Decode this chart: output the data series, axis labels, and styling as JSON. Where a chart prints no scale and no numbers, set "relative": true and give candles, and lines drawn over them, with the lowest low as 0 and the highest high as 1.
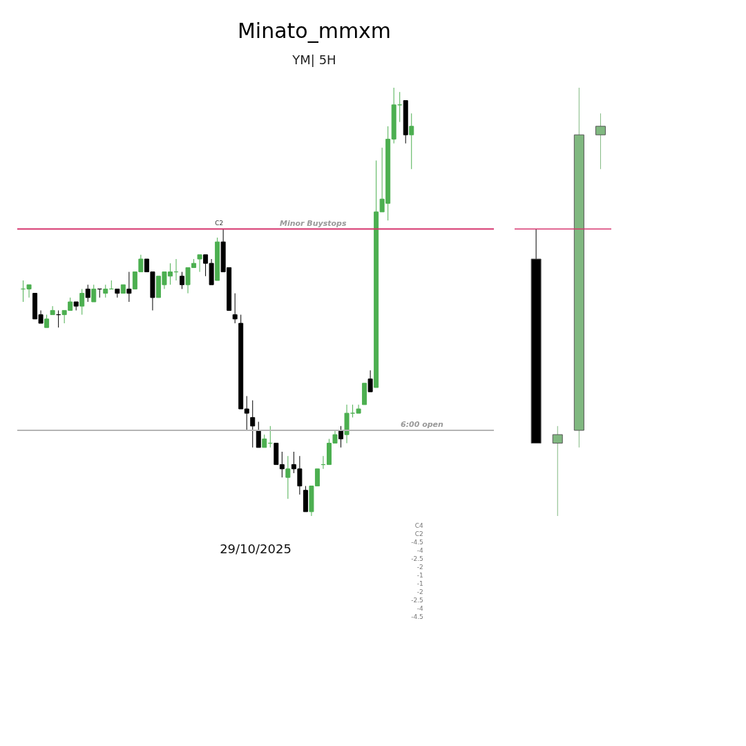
{
  "chart_data": [
    {
      "type": "candlestick",
      "title": "Minato_mmxm",
      "subtitle": "YM| 5H",
      "xlabel": "29/10/2025",
      "relative": true,
      "categories": [
        null,
        null,
        null,
        null,
        null,
        null,
        null,
        null,
        null,
        null,
        null,
        null,
        null,
        null,
        null,
        null,
        null,
        null,
        null,
        null,
        null,
        null,
        null,
        null,
        null,
        null,
        null,
        null,
        null,
        null,
        null,
        null,
        null,
        null,
        null,
        null,
        null,
        null,
        null,
        null,
        null,
        null,
        null,
        null,
        null,
        null,
        null,
        null,
        null,
        null,
        null,
        null,
        null,
        null,
        null,
        null,
        null,
        null,
        null,
        null,
        null,
        null,
        null,
        null,
        null,
        null,
        null
      ],
      "ohlc": [
        [
          0.53,
          0.55,
          0.5,
          0.53
        ],
        [
          0.53,
          0.54,
          0.51,
          0.54
        ],
        [
          0.52,
          0.52,
          0.46,
          0.46
        ],
        [
          0.47,
          0.48,
          0.45,
          0.45
        ],
        [
          0.44,
          0.47,
          0.44,
          0.46
        ],
        [
          0.47,
          0.49,
          0.47,
          0.48
        ],
        [
          0.47,
          0.48,
          0.44,
          0.47
        ],
        [
          0.47,
          0.48,
          0.45,
          0.48
        ],
        [
          0.48,
          0.51,
          0.48,
          0.5
        ],
        [
          0.5,
          0.5,
          0.48,
          0.49
        ],
        [
          0.49,
          0.53,
          0.47,
          0.52
        ],
        [
          0.53,
          0.54,
          0.5,
          0.51
        ],
        [
          0.5,
          0.54,
          0.5,
          0.53
        ],
        [
          0.53,
          0.53,
          0.51,
          0.53
        ],
        [
          0.52,
          0.54,
          0.51,
          0.53
        ],
        [
          0.53,
          0.55,
          0.53,
          0.53
        ],
        [
          0.53,
          0.53,
          0.51,
          0.52
        ],
        [
          0.52,
          0.54,
          0.52,
          0.54
        ],
        [
          0.53,
          0.57,
          0.5,
          0.52
        ],
        [
          0.53,
          0.57,
          0.53,
          0.57
        ],
        [
          0.57,
          0.61,
          0.57,
          0.6
        ],
        [
          0.6,
          0.6,
          0.57,
          0.57
        ],
        [
          0.57,
          0.57,
          0.48,
          0.51
        ],
        [
          0.51,
          0.56,
          0.51,
          0.56
        ],
        [
          0.54,
          0.57,
          0.53,
          0.57
        ],
        [
          0.56,
          0.59,
          0.54,
          0.57
        ],
        [
          0.57,
          0.6,
          0.55,
          0.57
        ],
        [
          0.56,
          0.57,
          0.53,
          0.54
        ],
        [
          0.54,
          0.58,
          0.52,
          0.58
        ],
        [
          0.58,
          0.6,
          0.58,
          0.59
        ],
        [
          0.6,
          0.61,
          0.57,
          0.61
        ],
        [
          0.61,
          0.61,
          0.56,
          0.59
        ],
        [
          0.59,
          0.6,
          0.54,
          0.54
        ],
        [
          0.55,
          0.65,
          0.55,
          0.64
        ],
        [
          0.64,
          0.67,
          0.57,
          0.57
        ],
        [
          0.58,
          0.58,
          0.48,
          0.48
        ],
        [
          0.47,
          0.52,
          0.45,
          0.46
        ],
        [
          0.45,
          0.47,
          0.25,
          0.25
        ],
        [
          0.25,
          0.28,
          0.2,
          0.24
        ],
        [
          0.23,
          0.27,
          0.16,
          0.21
        ],
        [
          0.2,
          0.22,
          0.16,
          0.16
        ],
        [
          0.16,
          0.19,
          0.16,
          0.18
        ],
        [
          0.17,
          0.21,
          0.16,
          0.17
        ],
        [
          0.17,
          0.17,
          0.12,
          0.12
        ],
        [
          0.12,
          0.15,
          0.09,
          0.11
        ],
        [
          0.09,
          0.14,
          0.04,
          0.11
        ],
        [
          0.12,
          0.15,
          0.1,
          0.11
        ],
        [
          0.11,
          0.14,
          0.05,
          0.07
        ],
        [
          0.06,
          0.07,
          0.01,
          0.01
        ],
        [
          0.01,
          0.07,
          0,
          0.07
        ],
        [
          0.07,
          0.11,
          0.07,
          0.11
        ],
        [
          0.12,
          0.14,
          0.11,
          0.12
        ],
        [
          0.12,
          0.18,
          0.12,
          0.17
        ],
        [
          0.17,
          0.2,
          0.17,
          0.19
        ],
        [
          0.2,
          0.21,
          0.16,
          0.18
        ],
        [
          0.19,
          0.26,
          0.17,
          0.24
        ],
        [
          0.24,
          0.26,
          0.23,
          0.24
        ],
        [
          0.24,
          0.26,
          0.24,
          0.25
        ],
        [
          0.26,
          0.31,
          0.26,
          0.31
        ],
        [
          0.32,
          0.34,
          0.29,
          0.29
        ],
        [
          0.3,
          0.83,
          0.3,
          0.71
        ],
        [
          0.71,
          0.86,
          0.71,
          0.74
        ],
        [
          0.73,
          0.91,
          0.69,
          0.88
        ],
        [
          0.88,
          1,
          0.87,
          0.96
        ],
        [
          0.96,
          0.99,
          0.92,
          0.96
        ],
        [
          0.97,
          0.97,
          0.87,
          0.89
        ],
        [
          0.89,
          0.94,
          0.81,
          0.91
        ]
      ],
      "colors": [
        "#4caf50",
        "#4caf50",
        "#000000",
        "#000000",
        "#4caf50",
        "#4caf50",
        "#000000",
        "#4caf50",
        "#4caf50",
        "#000000",
        "#4caf50",
        "#000000",
        "#4caf50",
        "#000000",
        "#4caf50",
        "#4caf50",
        "#000000",
        "#4caf50",
        "#000000",
        "#4caf50",
        "#4caf50",
        "#000000",
        "#000000",
        "#4caf50",
        "#4caf50",
        "#4caf50",
        "#4caf50",
        "#000000",
        "#4caf50",
        "#4caf50",
        "#4caf50",
        "#000000",
        "#000000",
        "#4caf50",
        "#000000",
        "#000000",
        "#000000",
        "#000000",
        "#000000",
        "#000000",
        "#000000",
        "#4caf50",
        "#4caf50",
        "#000000",
        "#000000",
        "#4caf50",
        "#000000",
        "#000000",
        "#000000",
        "#4caf50",
        "#4caf50",
        "#4caf50",
        "#4caf50",
        "#4caf50",
        "#000000",
        "#4caf50",
        "#4caf50",
        "#4caf50",
        "#4caf50",
        "#000000",
        "#4caf50",
        "#4caf50",
        "#4caf50",
        "#4caf50",
        "#4caf50",
        "#000000",
        "#4caf50"
      ],
      "ref_lines": [
        {
          "axis": "y",
          "value": 0.67,
          "label": "Minor Buystops",
          "color": "#d6336c"
        },
        {
          "axis": "y",
          "value": 0.2,
          "label": "6:00 open",
          "color": "#b5b5b5"
        }
      ],
      "annotations": [
        {
          "text": "C2",
          "y": 0.67
        },
        "C4",
        "C2",
        "-4.5",
        "-4",
        "-2.5",
        "-2",
        "-1",
        "-1",
        "-2",
        "-2.5",
        "-4",
        "-4.5"
      ]
    },
    {
      "type": "candlestick",
      "relative": true,
      "categories": [
        null,
        null,
        null,
        null
      ],
      "ohlc": [
        [
          0.6,
          0.67,
          0.17,
          0.17
        ],
        [
          0.17,
          0.21,
          0,
          0.19
        ],
        [
          0.2,
          1,
          0.16,
          0.89
        ],
        [
          0.89,
          0.94,
          0.81,
          0.91
        ]
      ],
      "colors": [
        "#000000",
        "#80b880",
        "#80b880",
        "#80b880"
      ],
      "ref_lines": [
        {
          "axis": "y",
          "value": 0.67,
          "color": "#d6336c"
        }
      ]
    }
  ]
}
